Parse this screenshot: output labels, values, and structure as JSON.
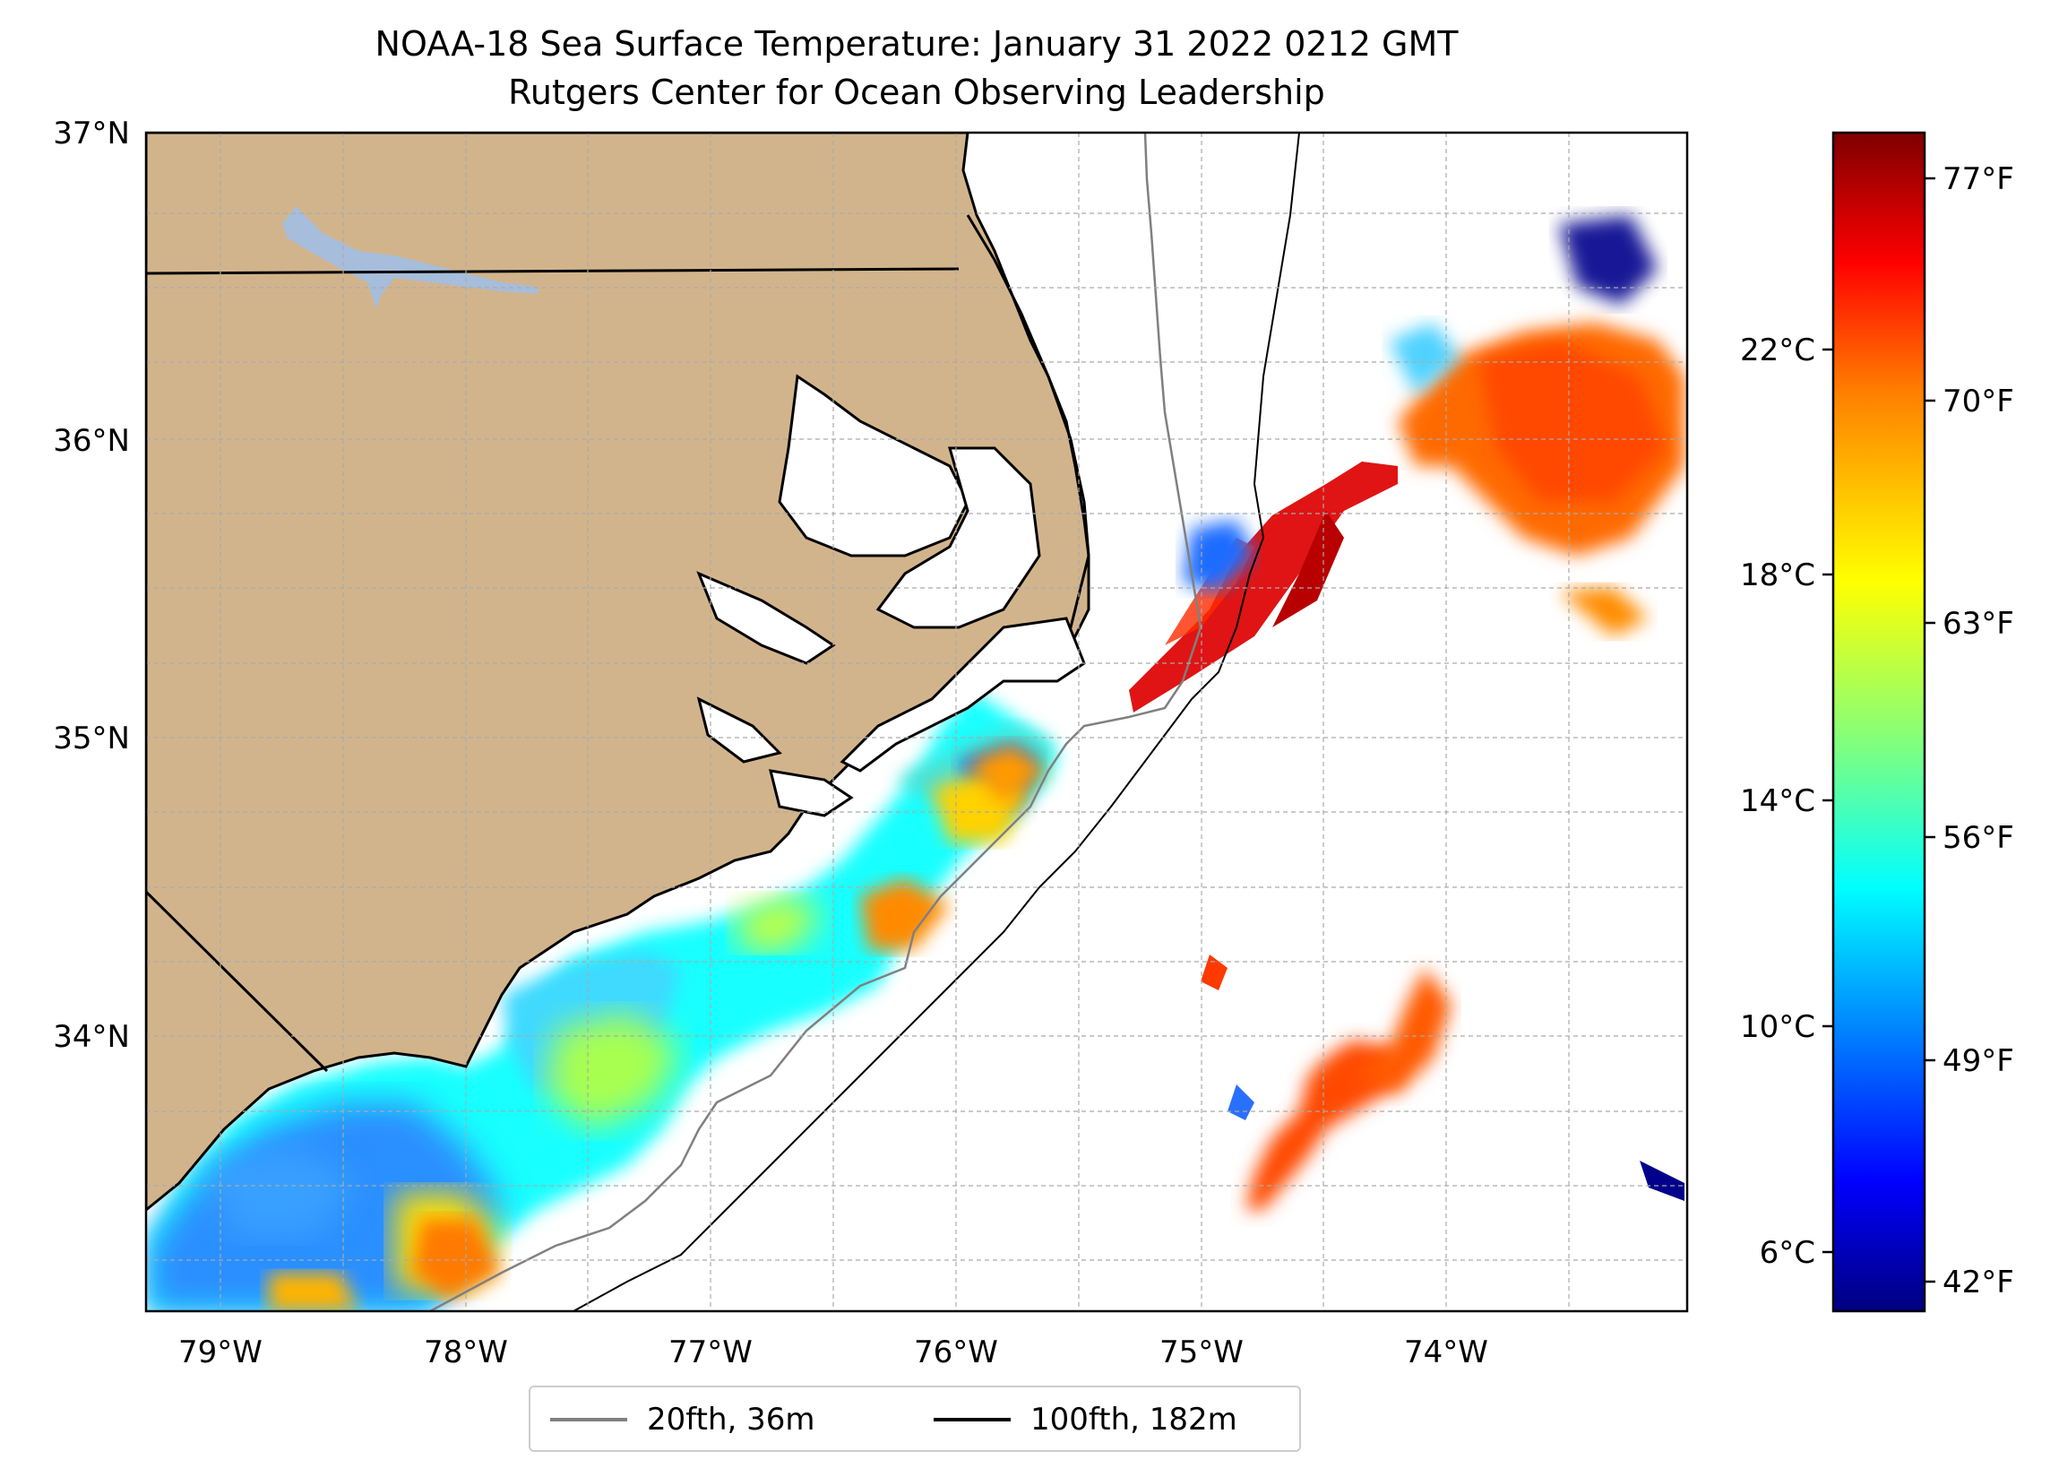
{
  "title": "NOAA-18 Sea Surface Temperature: January 31 2022 0212 GMT",
  "subtitle": "Rutgers Center for Ocean Observing Leadership",
  "lat_labels": [
    "37°N",
    "36°N",
    "35°N",
    "34°N"
  ],
  "lon_labels": [
    "79°W",
    "78°W",
    "77°W",
    "76°W",
    "75°W",
    "74°W"
  ],
  "colorbar": {
    "celsius_ticks": [
      "22°C",
      "18°C",
      "14°C",
      "10°C",
      "6°C"
    ],
    "fahrenheit_ticks": [
      "77°F",
      "70°F",
      "63°F",
      "56°F",
      "49°F",
      "42°F"
    ],
    "colormap": "jet",
    "colors": [
      "#00007f",
      "#0000ff",
      "#007fff",
      "#00ffff",
      "#7fff7f",
      "#ffff00",
      "#ff7f00",
      "#ff0000",
      "#7f0000"
    ]
  },
  "legend": [
    {
      "label": "20fth, 36m",
      "color": "#808080"
    },
    {
      "label": "100fth, 182m",
      "color": "#000000"
    }
  ],
  "colors": {
    "land": "#d2b48c",
    "ocean_nodata": "#ffffff",
    "lake": "#a6bddb",
    "grid": "#aaaaaa"
  }
}
